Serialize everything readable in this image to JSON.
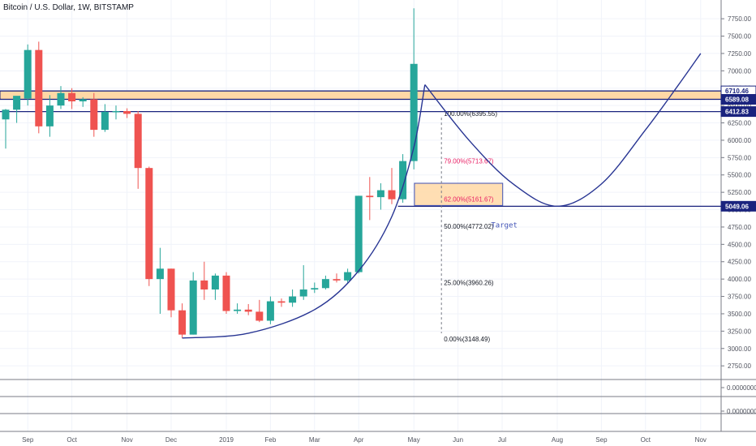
{
  "header": {
    "title": "Bitcoin / U.S. Dollar, 1W, BITSTAMP"
  },
  "colors": {
    "up": "#26a69a",
    "down": "#ef5350",
    "navy": "#1a237e",
    "zone_fill": "#ffd8a6",
    "fib_red": "#e91e63",
    "target_text": "#3f51b5",
    "curve": "#283593",
    "grid": "#f0f3fa",
    "axis_text": "#50535e"
  },
  "chart_data": {
    "type": "candlestick",
    "title": "Bitcoin / U.S. Dollar, 1W, BITSTAMP",
    "ylim": [
      2600,
      7950
    ],
    "y_ticks": [
      "7750.00",
      "7500.00",
      "7250.00",
      "7000.00",
      "6750.00",
      "6500.00",
      "6250.00",
      "6000.00",
      "5750.00",
      "5500.00",
      "5250.00",
      "5000.00",
      "4750.00",
      "4500.00",
      "4250.00",
      "4000.00",
      "3750.00",
      "3500.00",
      "3250.00",
      "3000.00",
      "2750.00"
    ],
    "x_labels": [
      {
        "label": "Sep",
        "bar": 2
      },
      {
        "label": "Oct",
        "bar": 6
      },
      {
        "label": "Nov",
        "bar": 11
      },
      {
        "label": "Dec",
        "bar": 15
      },
      {
        "label": "2019",
        "bar": 20
      },
      {
        "label": "Feb",
        "bar": 24
      },
      {
        "label": "Mar",
        "bar": 28
      },
      {
        "label": "Apr",
        "bar": 32
      },
      {
        "label": "May",
        "bar": 37
      },
      {
        "label": "Jun",
        "bar": 41
      },
      {
        "label": "Jul",
        "bar": 45
      },
      {
        "label": "Aug",
        "bar": 50
      },
      {
        "label": "Sep",
        "bar": 54
      },
      {
        "label": "Oct",
        "bar": 58
      },
      {
        "label": "Nov",
        "bar": 63
      }
    ],
    "candles": [
      {
        "o": 6300,
        "h": 6450,
        "l": 5880,
        "c": 6440
      },
      {
        "o": 6440,
        "h": 6620,
        "l": 6250,
        "c": 6640
      },
      {
        "o": 6600,
        "h": 7380,
        "l": 6500,
        "c": 7300
      },
      {
        "o": 7300,
        "h": 7420,
        "l": 6100,
        "c": 6200
      },
      {
        "o": 6200,
        "h": 6650,
        "l": 6050,
        "c": 6500
      },
      {
        "o": 6500,
        "h": 6780,
        "l": 6450,
        "c": 6680
      },
      {
        "o": 6680,
        "h": 6750,
        "l": 6450,
        "c": 6560
      },
      {
        "o": 6560,
        "h": 6620,
        "l": 6480,
        "c": 6590
      },
      {
        "o": 6590,
        "h": 6680,
        "l": 6050,
        "c": 6150
      },
      {
        "o": 6150,
        "h": 6520,
        "l": 6120,
        "c": 6410
      },
      {
        "o": 6410,
        "h": 6500,
        "l": 6300,
        "c": 6420
      },
      {
        "o": 6420,
        "h": 6460,
        "l": 6320,
        "c": 6380
      },
      {
        "o": 6380,
        "h": 6420,
        "l": 5300,
        "c": 5600
      },
      {
        "o": 5600,
        "h": 5620,
        "l": 3900,
        "c": 4000
      },
      {
        "o": 4000,
        "h": 4450,
        "l": 3500,
        "c": 4150
      },
      {
        "o": 4150,
        "h": 4150,
        "l": 3450,
        "c": 3550
      },
      {
        "o": 3550,
        "h": 3650,
        "l": 3150,
        "c": 3200
      },
      {
        "o": 3200,
        "h": 4100,
        "l": 3200,
        "c": 3980
      },
      {
        "o": 3980,
        "h": 4250,
        "l": 3700,
        "c": 3850
      },
      {
        "o": 3850,
        "h": 4080,
        "l": 3700,
        "c": 4050
      },
      {
        "o": 4050,
        "h": 4100,
        "l": 3500,
        "c": 3540
      },
      {
        "o": 3540,
        "h": 3650,
        "l": 3500,
        "c": 3560
      },
      {
        "o": 3560,
        "h": 3640,
        "l": 3480,
        "c": 3530
      },
      {
        "o": 3530,
        "h": 3700,
        "l": 3380,
        "c": 3400
      },
      {
        "o": 3400,
        "h": 3750,
        "l": 3350,
        "c": 3680
      },
      {
        "o": 3680,
        "h": 3720,
        "l": 3600,
        "c": 3660
      },
      {
        "o": 3660,
        "h": 3850,
        "l": 3600,
        "c": 3750
      },
      {
        "o": 3750,
        "h": 4200,
        "l": 3700,
        "c": 3850
      },
      {
        "o": 3850,
        "h": 3950,
        "l": 3800,
        "c": 3870
      },
      {
        "o": 3870,
        "h": 4050,
        "l": 3850,
        "c": 4000
      },
      {
        "o": 4000,
        "h": 4080,
        "l": 3950,
        "c": 3980
      },
      {
        "o": 3980,
        "h": 4150,
        "l": 3950,
        "c": 4100
      },
      {
        "o": 4100,
        "h": 5200,
        "l": 4080,
        "c": 5200
      },
      {
        "o": 5200,
        "h": 5470,
        "l": 4850,
        "c": 5180
      },
      {
        "o": 5180,
        "h": 5380,
        "l": 5000,
        "c": 5280
      },
      {
        "o": 5280,
        "h": 5600,
        "l": 5080,
        "c": 5150
      },
      {
        "o": 5150,
        "h": 5800,
        "l": 5100,
        "c": 5700
      },
      {
        "o": 5700,
        "h": 7900,
        "l": 5580,
        "c": 7100
      }
    ],
    "levels": [
      {
        "value": 6710.46,
        "label": "6710.46",
        "style": "navy-label"
      },
      {
        "value": 6589.08,
        "label": "6589.08",
        "style": "navy-fill"
      },
      {
        "value": 6412.83,
        "label": "6412.83",
        "style": "navy-fill"
      },
      {
        "value": 5049.06,
        "label": "5049.06",
        "style": "navy-fill"
      }
    ],
    "resistance_zone": {
      "low": 6590,
      "high": 6710
    },
    "fib_levels": [
      {
        "text": "100.00%(6395.55)",
        "value": 6395.55
      },
      {
        "text": "79.00%(5713.67)",
        "value": 5713.67
      },
      {
        "text": "62.00%(5161.67)",
        "value": 5161.67
      },
      {
        "text": "50.00%(4772.02)",
        "value": 4772.02
      },
      {
        "text": "25.00%(3960.26)",
        "value": 3960.26
      },
      {
        "text": "0.00%(3148.49)",
        "value": 3148.49
      }
    ],
    "target_zone": {
      "low": 5060,
      "high": 5380,
      "from_bar": 37.2,
      "to_bar": 45.2
    },
    "target_label": "Target",
    "cup_curve": [
      {
        "bar": 16,
        "value": 3150
      },
      {
        "bar": 22,
        "value": 3220
      },
      {
        "bar": 28,
        "value": 3560
      },
      {
        "bar": 32,
        "value": 4120
      },
      {
        "bar": 35,
        "value": 4900
      },
      {
        "bar": 37,
        "value": 5900
      },
      {
        "bar": 38,
        "value": 6800
      }
    ],
    "projection_curve": [
      {
        "bar": 38,
        "value": 6800
      },
      {
        "bar": 42,
        "value": 6000
      },
      {
        "bar": 46,
        "value": 5370
      },
      {
        "bar": 50,
        "value": 5049
      },
      {
        "bar": 54,
        "value": 5370
      },
      {
        "bar": 58,
        "value": 6150
      },
      {
        "bar": 61,
        "value": 6800
      },
      {
        "bar": 63,
        "value": 7250
      }
    ],
    "sub_panes": [
      {
        "label": "0.0000000"
      },
      {
        "label": "0.0000000"
      }
    ]
  }
}
